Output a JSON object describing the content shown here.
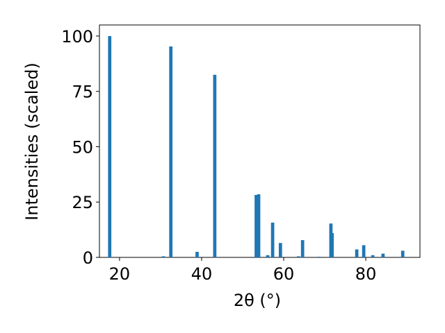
{
  "chart_data": {
    "type": "bar",
    "x_label": "2θ (°)",
    "y_label": "Intensities (scaled)",
    "x": [
      17.6,
      30.7,
      32.5,
      38.9,
      43.2,
      53.3,
      53.9,
      56.1,
      57.3,
      59.2,
      63.6,
      64.6,
      68.6,
      71.5,
      71.8,
      77.8,
      79.5,
      81.7,
      84.2,
      89.0
    ],
    "values": [
      100,
      0.5,
      95.3,
      2.5,
      82.5,
      28.2,
      28.5,
      1,
      15.7,
      6.5,
      0.5,
      7.8,
      0.3,
      15.3,
      11,
      3.6,
      5.5,
      1,
      1.7,
      3
    ],
    "color": "#1f77b4",
    "xlim": [
      15.1,
      93.2
    ],
    "xticks": [
      20,
      40,
      60,
      80
    ],
    "ylim": [
      0,
      105
    ],
    "yticks": [
      0,
      25,
      50,
      75,
      100
    ]
  }
}
